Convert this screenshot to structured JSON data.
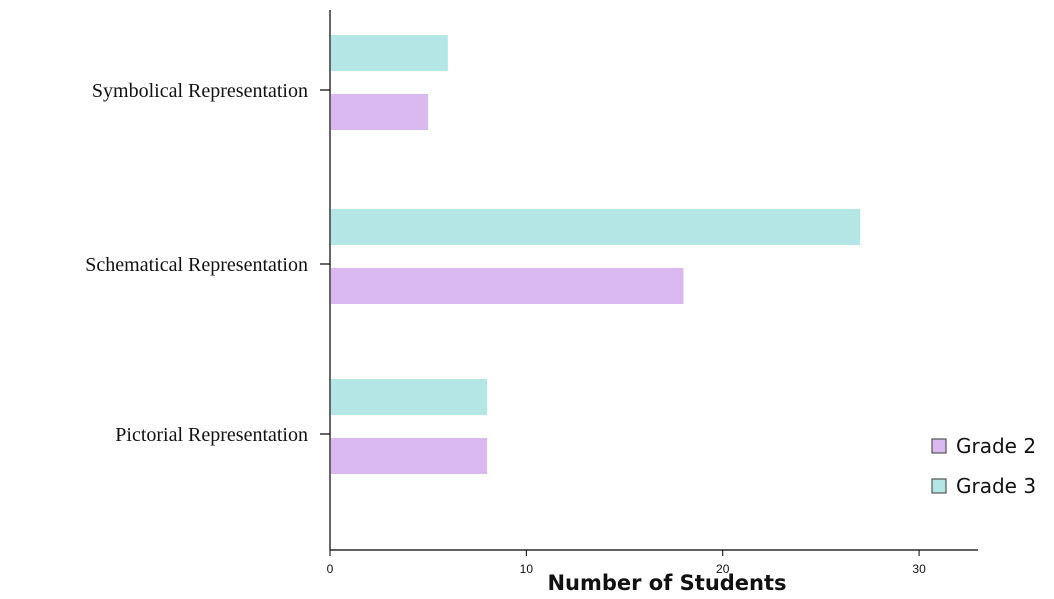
{
  "chart_data": {
    "type": "bar",
    "orientation": "horizontal",
    "categories": [
      "Symbolical Representation",
      "Schematical Representation",
      "Pictorial Representation"
    ],
    "series": [
      {
        "name": "Grade 2",
        "values": [
          5,
          18,
          8
        ],
        "color": "#dab9f0"
      },
      {
        "name": "Grade 3",
        "values": [
          6,
          27,
          8
        ],
        "color": "#b4e6e6"
      }
    ],
    "xlabel": "Number of Students",
    "ylabel": "",
    "xlim": [
      0,
      33
    ],
    "xticks": [
      0,
      10,
      20,
      30
    ],
    "grid": false,
    "legend": "bottom-right",
    "legend_entries": [
      "Grade 2",
      "Grade 3"
    ]
  }
}
